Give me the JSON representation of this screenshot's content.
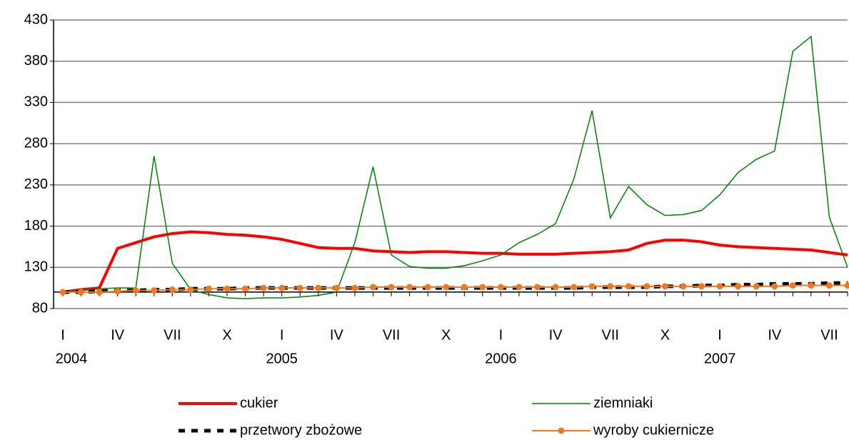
{
  "chart_data": {
    "type": "line",
    "categories": [
      "I",
      null,
      null,
      "IV",
      null,
      null,
      "VII",
      null,
      null,
      "X",
      null,
      null,
      "I",
      null,
      null,
      "IV",
      null,
      null,
      "VII",
      null,
      null,
      "X",
      null,
      null,
      "I",
      null,
      null,
      "IV",
      null,
      null,
      "VII",
      null,
      null,
      "X",
      null,
      null,
      "I",
      null,
      null,
      "IV",
      null,
      null,
      "VII",
      null
    ],
    "years": [
      "2004",
      "2005",
      "2006",
      "2007"
    ],
    "ylim": [
      80,
      430
    ],
    "yticks": [
      80,
      130,
      180,
      230,
      280,
      330,
      380,
      430
    ],
    "grid": true,
    "x_axis_crosses": 100,
    "legend": "bottom",
    "series": [
      {
        "name": "cukier",
        "color": "#ff0000",
        "style": "thick",
        "values": [
          100,
          103,
          105,
          153,
          160,
          167,
          171,
          173,
          172,
          170,
          169,
          167,
          164,
          159,
          154,
          153,
          153,
          150,
          149,
          148,
          149,
          149,
          148,
          147,
          147,
          146,
          146,
          146,
          147,
          148,
          149,
          151,
          159,
          163,
          163,
          161,
          157,
          155,
          154,
          153,
          152,
          151,
          148,
          145
        ]
      },
      {
        "name": "ziemniaki",
        "color": "#008000",
        "style": "thin",
        "values": [
          100,
          102,
          104,
          105,
          105,
          265,
          135,
          103,
          97,
          93,
          92,
          93,
          93,
          94,
          96,
          100,
          160,
          252,
          145,
          131,
          129,
          129,
          132,
          138,
          145,
          160,
          170,
          183,
          237,
          320,
          190,
          228,
          206,
          193,
          194,
          199,
          218,
          245,
          261,
          271,
          392,
          410,
          191,
          130
        ]
      },
      {
        "name": "przetwory zbożowe",
        "color": "#000000",
        "style": "dashed",
        "values": [
          100,
          100,
          101,
          102,
          102,
          103,
          103,
          104,
          104,
          104,
          105,
          105,
          105,
          105,
          105,
          105,
          105,
          105,
          105,
          105,
          105,
          105,
          105,
          105,
          105,
          105,
          105,
          105,
          105,
          106,
          106,
          106,
          106,
          107,
          107,
          108,
          108,
          109,
          109,
          110,
          110,
          110,
          111,
          111
        ]
      },
      {
        "name": "wyroby cukiernicze",
        "color": "#f07820",
        "style": "markers",
        "values": [
          100,
          100,
          100,
          101,
          102,
          102,
          103,
          103,
          104,
          104,
          104,
          105,
          105,
          105,
          105,
          105,
          105,
          106,
          106,
          106,
          106,
          106,
          106,
          106,
          106,
          106,
          106,
          106,
          106,
          107,
          107,
          107,
          107,
          107,
          107,
          107,
          107,
          107,
          107,
          107,
          108,
          108,
          108,
          108
        ]
      }
    ]
  }
}
